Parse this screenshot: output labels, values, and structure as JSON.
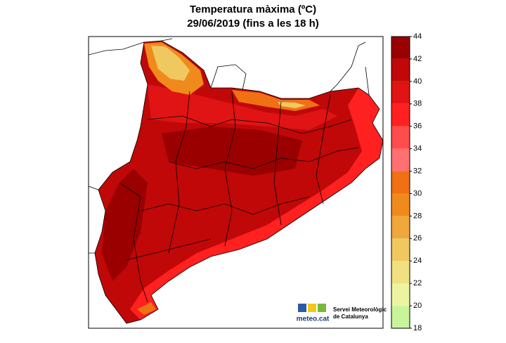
{
  "title": [
    "Temperatura màxima (ºC)",
    "29/06/2019 (fins a les 18 h)"
  ],
  "colorbar": {
    "ticks": [
      18,
      20,
      22,
      24,
      26,
      28,
      30,
      32,
      34,
      36,
      38,
      40,
      42,
      44
    ],
    "colors": [
      "#c8f49a",
      "#ecf4a0",
      "#f0e080",
      "#f0c860",
      "#f0a83c",
      "#f08a1c",
      "#f07014",
      "#ff7070",
      "#ff4c4c",
      "#ff2020",
      "#e01414",
      "#c00808",
      "#9a0000",
      "#5a0000"
    ]
  },
  "logo": {
    "brand": "meteo.cat",
    "name": [
      "Servei Meteorològic",
      "de Catalunya"
    ]
  }
}
